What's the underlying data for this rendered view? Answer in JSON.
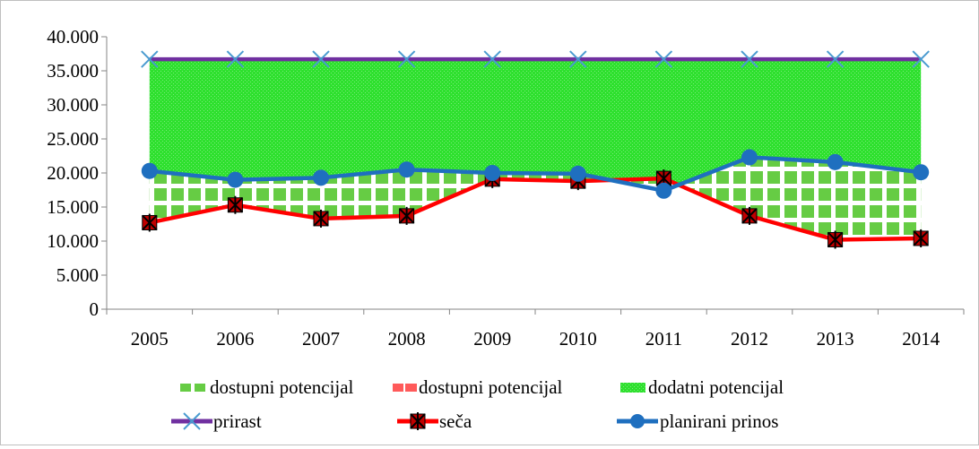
{
  "chart_data": {
    "type": "line",
    "categories": [
      "2005",
      "2006",
      "2007",
      "2008",
      "2009",
      "2010",
      "2011",
      "2012",
      "2013",
      "2014"
    ],
    "ylim": [
      0,
      40000
    ],
    "yticks": [
      0,
      5000,
      10000,
      15000,
      20000,
      25000,
      30000,
      35000,
      40000
    ],
    "ytick_labels": [
      "0",
      "5.000",
      "10.000",
      "15.000",
      "20.000",
      "25.000",
      "30.000",
      "35.000",
      "40.000"
    ],
    "grid": false,
    "legend_position": "bottom",
    "series": [
      {
        "name": "prirast",
        "kind": "line",
        "color": "#7030a0",
        "marker": "x",
        "values": [
          36700,
          36700,
          36700,
          36700,
          36700,
          36700,
          36700,
          36700,
          36700,
          36700
        ]
      },
      {
        "name": "seča",
        "kind": "line",
        "color": "#ff0000",
        "marker": "x-square",
        "values": [
          12700,
          15300,
          13300,
          13700,
          19100,
          18800,
          19200,
          13700,
          10200,
          10400
        ]
      },
      {
        "name": "planirani prinos",
        "kind": "line",
        "color": "#1f6fbf",
        "marker": "circle",
        "values": [
          20300,
          19000,
          19300,
          20500,
          20000,
          19900,
          17400,
          22300,
          21600,
          20100
        ]
      }
    ],
    "areas": [
      {
        "name": "dostupni potencijal",
        "color": "#66cc44",
        "pattern": "green-squares",
        "from_series": "seča",
        "to_series": "planirani prinos"
      },
      {
        "name": "dostupni potencijal",
        "color": "#ff5a5a",
        "pattern": "red-solid",
        "from_series": "planirani prinos",
        "to_series": "seča"
      },
      {
        "name": "dodatni potencijal",
        "color": "#33dd33",
        "pattern": "green-dots",
        "from_series": "planirani prinos",
        "to_series": "prirast"
      }
    ]
  }
}
